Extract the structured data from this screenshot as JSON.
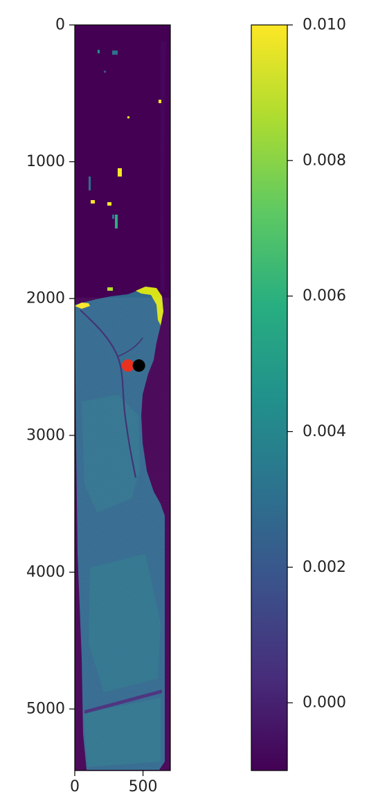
{
  "chart_data": {
    "type": "heatmap",
    "title": "",
    "xlabel": "",
    "ylabel": "",
    "x_range": [
      0,
      700
    ],
    "y_range": [
      0,
      5450
    ],
    "y_inverted": true,
    "x_ticks": [
      "0",
      "500"
    ],
    "x_tick_values": [
      0,
      500
    ],
    "y_ticks": [
      "0",
      "1000",
      "2000",
      "3000",
      "4000",
      "5000"
    ],
    "y_tick_values": [
      0,
      1000,
      2000,
      3000,
      4000,
      5000
    ],
    "colormap": "viridis",
    "colorbar": {
      "range": [
        -0.001,
        0.01
      ],
      "ticks": [
        "0.000",
        "0.002",
        "0.004",
        "0.006",
        "0.008",
        "0.010"
      ],
      "tick_values": [
        0.0,
        0.002,
        0.004,
        0.006,
        0.008,
        0.01
      ]
    },
    "markers": [
      {
        "x": 390,
        "y": 2490,
        "color": "#e8321f"
      },
      {
        "x": 470,
        "y": 2490,
        "color": "#000000"
      }
    ],
    "regions": {
      "upper_background_value": -0.0008,
      "lower_region_start_y": 2000,
      "lower_region_value": 0.0035,
      "right_dark_region_end_y": 3600
    },
    "colors": {
      "viridis_low": "#440154",
      "viridis_mid": "#21918c",
      "viridis_high": "#fde725"
    }
  }
}
